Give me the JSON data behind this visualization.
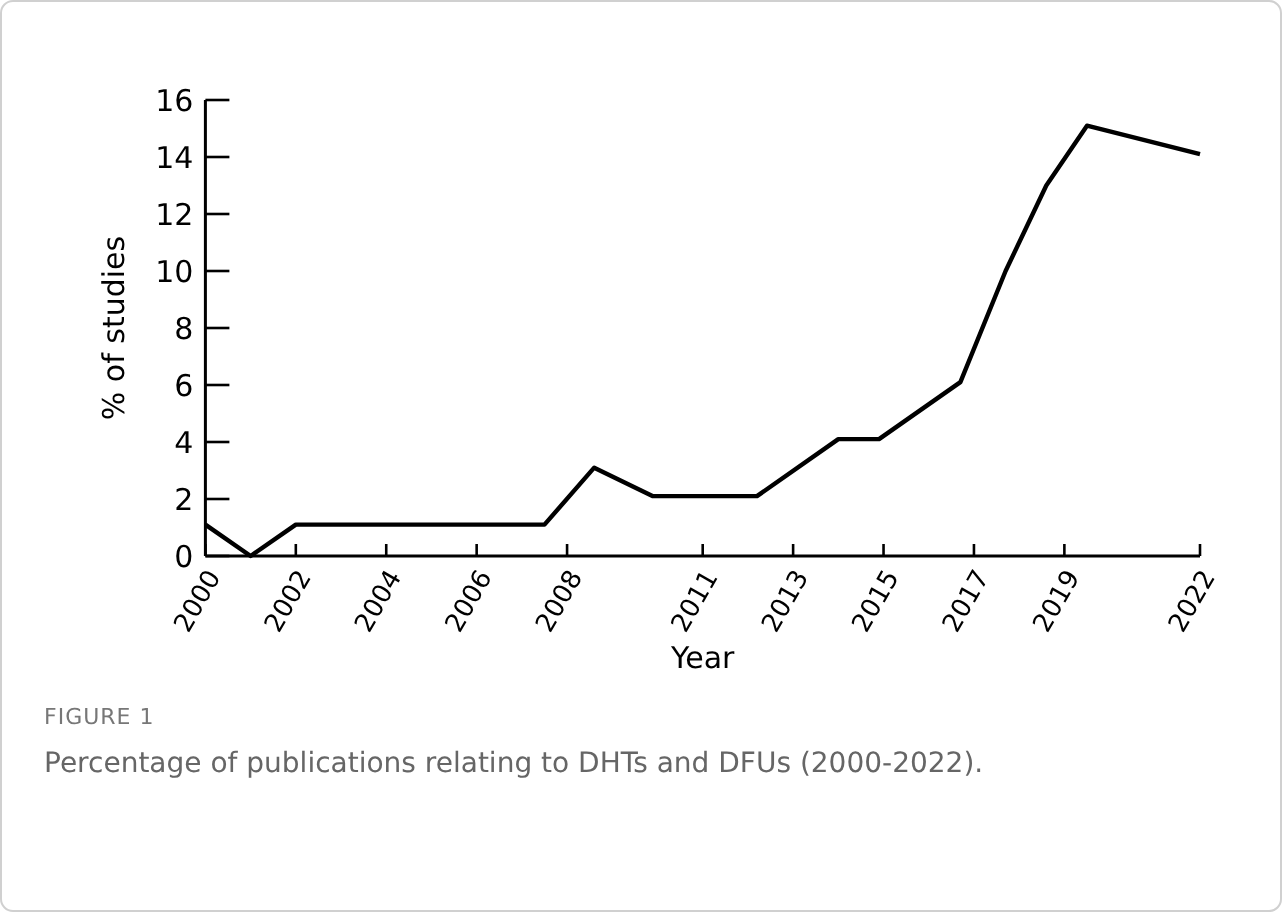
{
  "chart_data": {
    "type": "line",
    "xlabel": "Year",
    "ylabel": "% of studies",
    "x": [
      2000,
      2001,
      2002,
      2007.5,
      2008.6,
      2009.9,
      2012.2,
      2014,
      2014.9,
      2016.7,
      2017.7,
      2018.6,
      2019.5,
      2022
    ],
    "series": [
      {
        "color": "#000000",
        "values": [
          1.1,
          0,
          1.1,
          1.1,
          3.1,
          2.1,
          2.1,
          4.1,
          4.1,
          6.1,
          10,
          13,
          15.1,
          14.1
        ]
      }
    ],
    "xlim": [
      2000,
      2022
    ],
    "xticks": [
      2000,
      2002,
      2004,
      2006,
      2008,
      2011,
      2013,
      2015,
      2017,
      2019,
      2022
    ],
    "ylim": [
      0,
      16
    ],
    "yticks": [
      0,
      2,
      4,
      6,
      8,
      10,
      12,
      14,
      16
    ],
    "grid": false,
    "marker": "none",
    "line_style": "solid",
    "annotations": [
      "FIGURE 1",
      "Percentage of publications relating to DHTs and DFUs (2000-2022)."
    ]
  }
}
